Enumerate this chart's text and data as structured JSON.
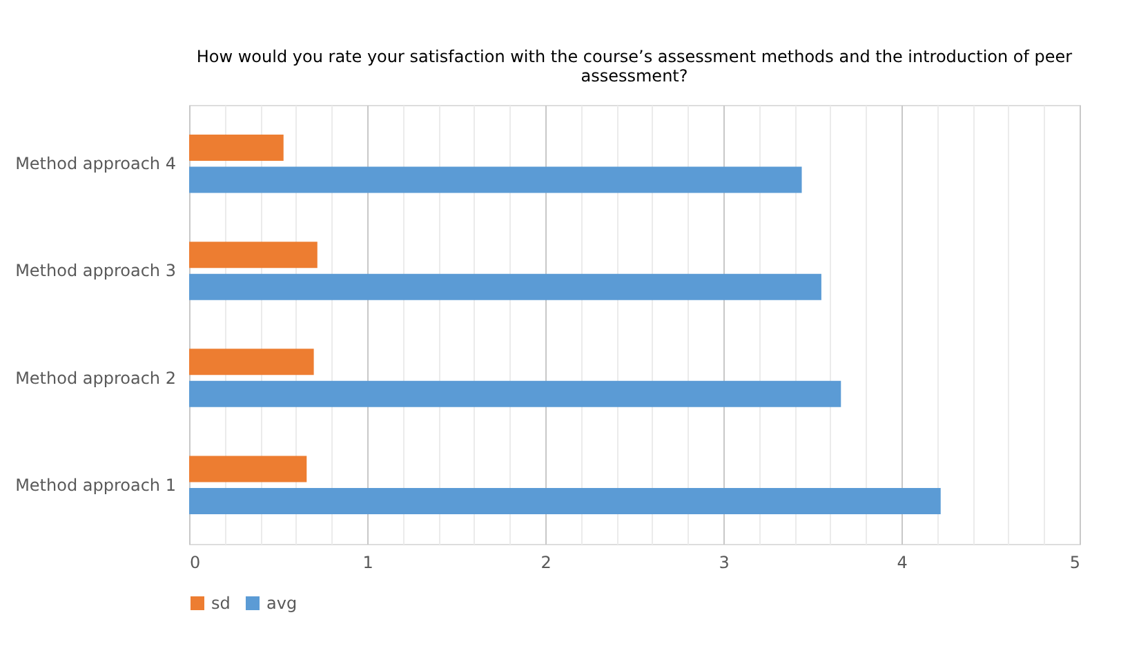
{
  "chart_data": {
    "type": "bar",
    "orientation": "horizontal",
    "title": "How would you rate your satisfaction with the course’s assessment methods and the introduction of peer assessment?",
    "categories": [
      "Method approach 4",
      "Method approach 3",
      "Method approach 2",
      "Method approach 1"
    ],
    "series": [
      {
        "name": "sd",
        "color": "#ed7d31",
        "values": [
          0.53,
          0.72,
          0.7,
          0.66
        ]
      },
      {
        "name": "avg",
        "color": "#5b9bd5",
        "values": [
          3.44,
          3.55,
          3.66,
          4.22
        ]
      }
    ],
    "xlim": [
      0,
      5
    ],
    "xticks": [
      0,
      {
        "value": 0.2,
        "label": null
      },
      {
        "value": 0.4,
        "label": null
      },
      {
        "value": 0.6,
        "label": null
      },
      {
        "value": 0.8,
        "label": null
      },
      1,
      {
        "value": 1.2,
        "label": null
      },
      {
        "value": 1.4,
        "label": null
      },
      {
        "value": 1.6,
        "label": null
      },
      {
        "value": 1.8,
        "label": null
      },
      2,
      {
        "value": 2.2,
        "label": null
      },
      {
        "value": 2.4,
        "label": null
      },
      {
        "value": 2.6,
        "label": null
      },
      {
        "value": 2.8,
        "label": null
      },
      3,
      {
        "value": 3.2,
        "label": null
      },
      {
        "value": 3.4,
        "label": null
      },
      {
        "value": 3.6,
        "label": null
      },
      {
        "value": 3.8,
        "label": null
      },
      4,
      {
        "value": 4.2,
        "label": null
      },
      {
        "value": 4.4,
        "label": null
      },
      {
        "value": 4.6,
        "label": null
      },
      {
        "value": 4.8,
        "label": null
      },
      5
    ],
    "grid": "x",
    "legend": "bottom"
  }
}
